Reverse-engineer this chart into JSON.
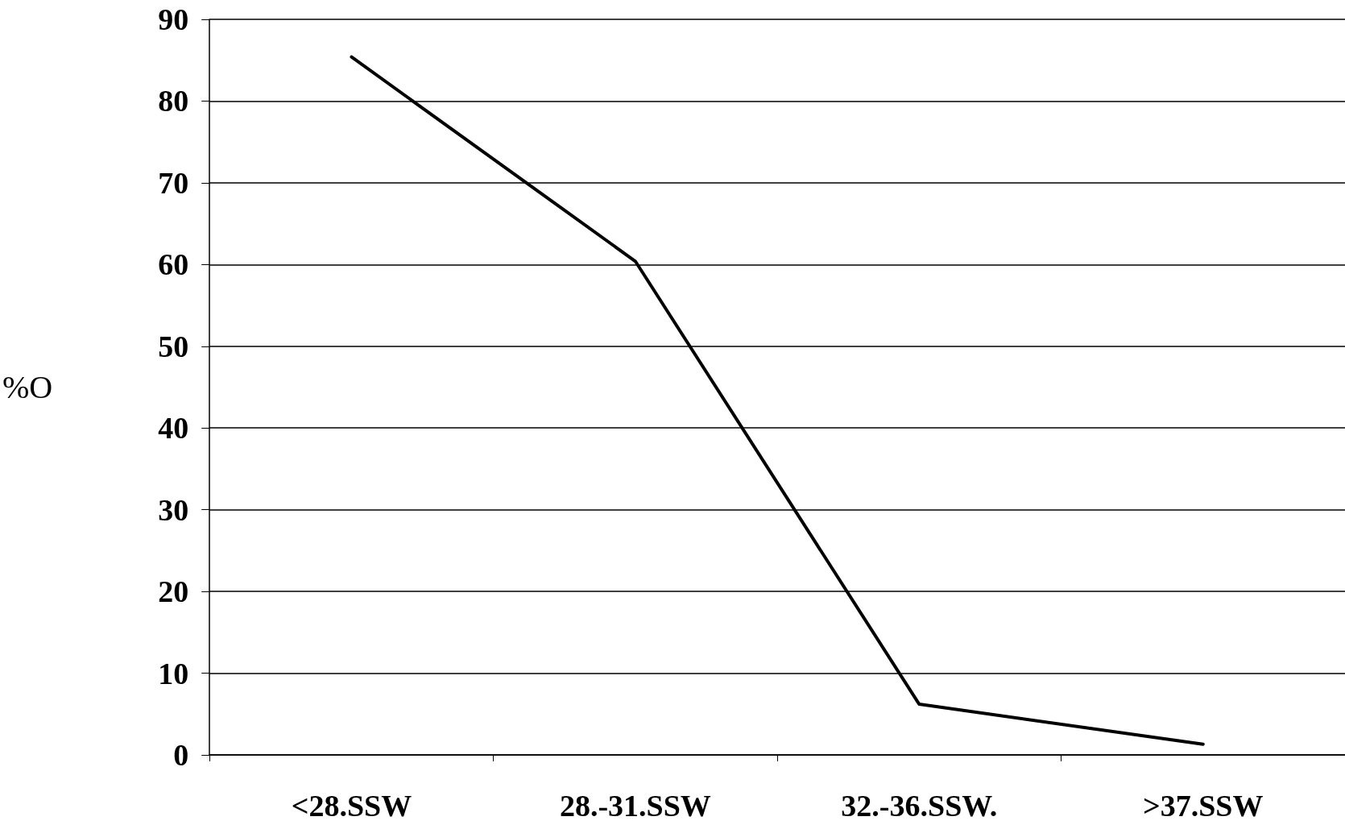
{
  "chart_data": {
    "type": "line",
    "ylabel": "%O",
    "categories": [
      "<28.SSW",
      "28.-31.SSW",
      "32.-36.SSW.",
      ">37.SSW"
    ],
    "series": [
      {
        "color": "#000000",
        "values": [
          85.4,
          60.4,
          6.2,
          1.3
        ]
      }
    ],
    "ylim": [
      0,
      90
    ],
    "yticks": [
      0,
      10,
      20,
      30,
      40,
      50,
      60,
      70,
      80,
      90
    ],
    "grid": "y",
    "marker": "none",
    "line_style": "solid"
  }
}
